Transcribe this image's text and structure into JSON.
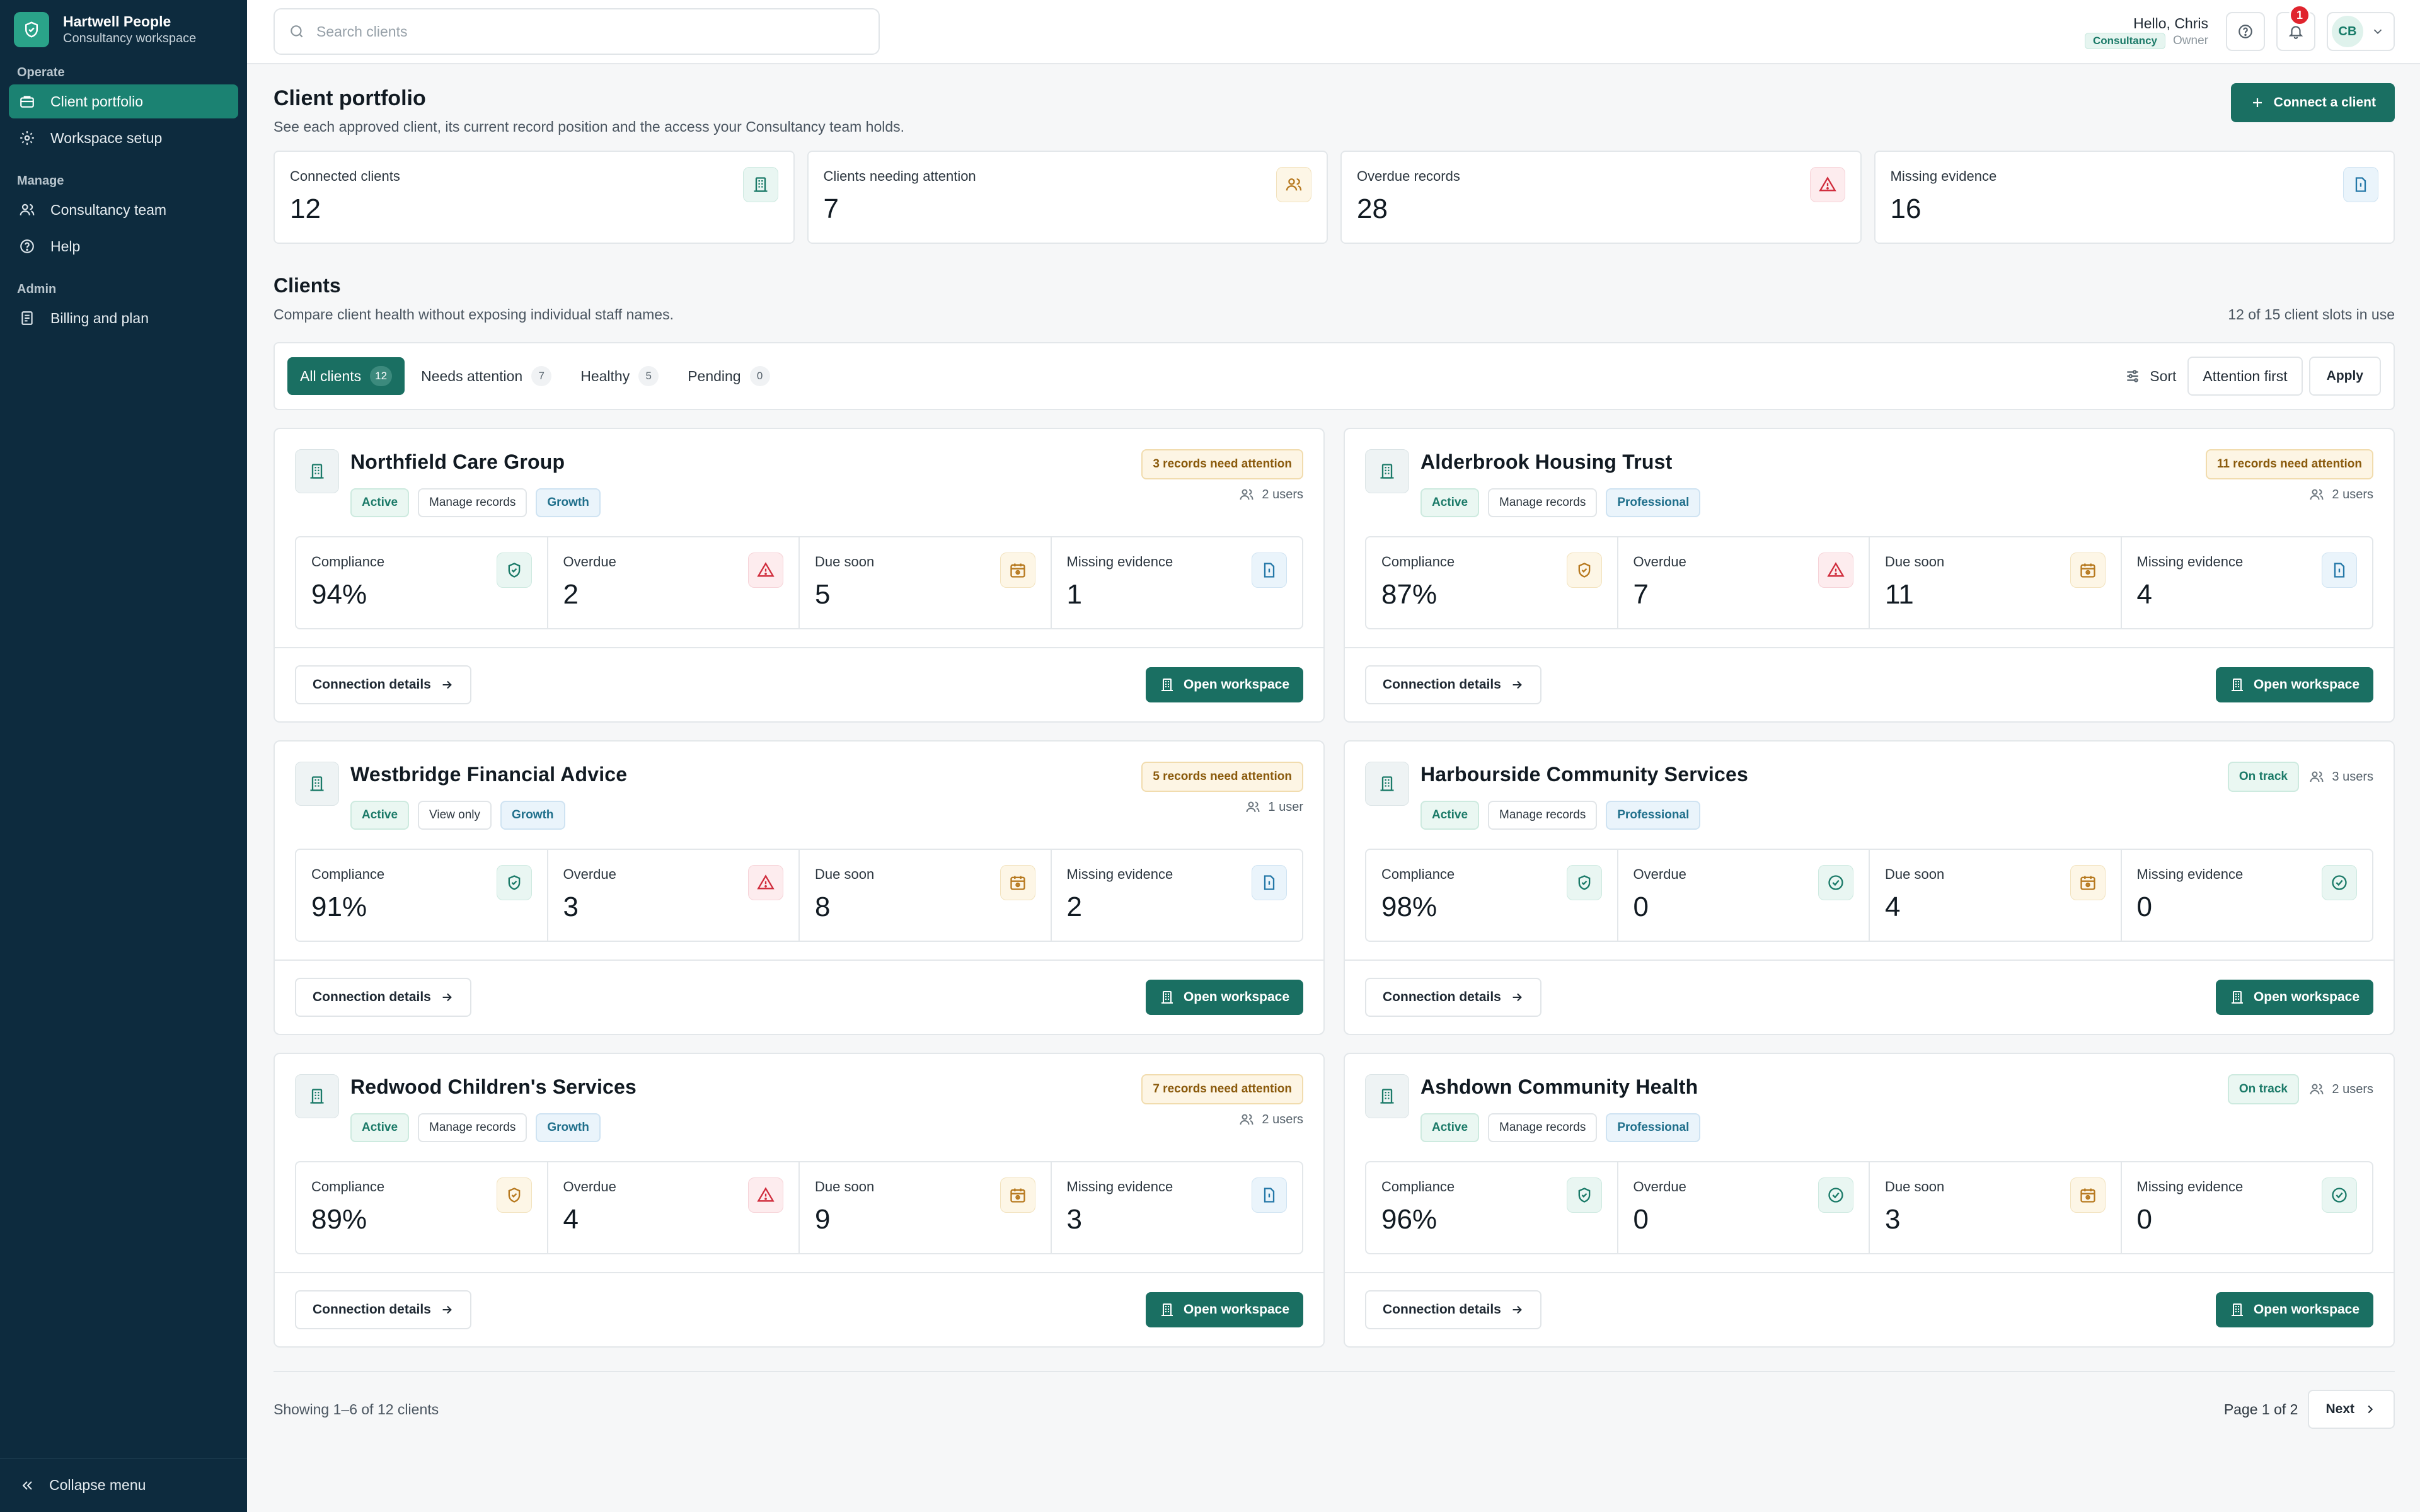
{
  "brand": {
    "name": "Hartwell People",
    "sub": "Consultancy workspace"
  },
  "sidebar": {
    "sections": [
      {
        "title": "Operate",
        "items": [
          {
            "label": "Client portfolio",
            "icon": "briefcase-icon",
            "active": true
          },
          {
            "label": "Workspace setup",
            "icon": "gear-icon"
          }
        ]
      },
      {
        "title": "Manage",
        "items": [
          {
            "label": "Consultancy team",
            "icon": "users-icon"
          },
          {
            "label": "Help",
            "icon": "help-icon"
          }
        ]
      },
      {
        "title": "Admin",
        "items": [
          {
            "label": "Billing and plan",
            "icon": "receipt-icon"
          }
        ]
      }
    ],
    "collapse_label": "Collapse menu"
  },
  "topbar": {
    "search_placeholder": "Search clients",
    "greeting": "Hello, Chris",
    "org_badge": "Consultancy",
    "role": "Owner",
    "notification_count": "1",
    "avatar_initials": "CB"
  },
  "page": {
    "title": "Client portfolio",
    "subtitle": "See each approved client, its current record position and the access your Consultancy team holds.",
    "connect_button": "Connect a client"
  },
  "stats": [
    {
      "label": "Connected clients",
      "value": "12",
      "icon": "building-icon",
      "tone": "green"
    },
    {
      "label": "Clients needing attention",
      "value": "7",
      "icon": "users-icon",
      "tone": "amber"
    },
    {
      "label": "Overdue records",
      "value": "28",
      "icon": "alert-triangle-icon",
      "tone": "red"
    },
    {
      "label": "Missing evidence",
      "value": "16",
      "icon": "file-icon",
      "tone": "blue"
    }
  ],
  "clients_section": {
    "title": "Clients",
    "subtitle": "Compare client health without exposing individual staff names.",
    "slots": "12 of 15 client slots in use"
  },
  "filters": {
    "tabs": [
      {
        "label": "All clients",
        "count": "12",
        "active": true
      },
      {
        "label": "Needs attention",
        "count": "7"
      },
      {
        "label": "Healthy",
        "count": "5"
      },
      {
        "label": "Pending",
        "count": "0"
      }
    ],
    "sort_label": "Sort",
    "sort_value": "Attention first",
    "apply_label": "Apply"
  },
  "card_labels": {
    "compliance": "Compliance",
    "overdue": "Overdue",
    "due_soon": "Due soon",
    "missing_evidence": "Missing evidence",
    "connection_details": "Connection details",
    "open_workspace": "Open workspace"
  },
  "clients": [
    {
      "name": "Northfield Care Group",
      "status": "Active",
      "access": "Manage records",
      "plan": "Growth",
      "attention": "3 records need attention",
      "users": "2 users",
      "compliance": "94%",
      "compliance_tone": "green",
      "overdue": "2",
      "overdue_tone": "red",
      "due_soon": "5",
      "missing": "1",
      "missing_tone": "blue"
    },
    {
      "name": "Alderbrook Housing Trust",
      "status": "Active",
      "access": "Manage records",
      "plan": "Professional",
      "attention": "11 records need attention",
      "users": "2 users",
      "compliance": "87%",
      "compliance_tone": "amber",
      "overdue": "7",
      "overdue_tone": "red",
      "due_soon": "11",
      "missing": "4",
      "missing_tone": "blue"
    },
    {
      "name": "Westbridge Financial Advice",
      "status": "Active",
      "access": "View only",
      "plan": "Growth",
      "attention": "5 records need attention",
      "users": "1 user",
      "compliance": "91%",
      "compliance_tone": "green",
      "overdue": "3",
      "overdue_tone": "red",
      "due_soon": "8",
      "missing": "2",
      "missing_tone": "blue"
    },
    {
      "name": "Harbourside Community Services",
      "status": "Active",
      "access": "Manage records",
      "plan": "Professional",
      "ontrack": "On track",
      "users": "3 users",
      "compliance": "98%",
      "compliance_tone": "green",
      "overdue": "0",
      "overdue_tone": "green",
      "due_soon": "4",
      "missing": "0",
      "missing_tone": "green"
    },
    {
      "name": "Redwood Children's Services",
      "status": "Active",
      "access": "Manage records",
      "plan": "Growth",
      "attention": "7 records need attention",
      "users": "2 users",
      "compliance": "89%",
      "compliance_tone": "amber",
      "overdue": "4",
      "overdue_tone": "red",
      "due_soon": "9",
      "missing": "3",
      "missing_tone": "blue"
    },
    {
      "name": "Ashdown Community Health",
      "status": "Active",
      "access": "Manage records",
      "plan": "Professional",
      "ontrack": "On track",
      "users": "2 users",
      "compliance": "96%",
      "compliance_tone": "green",
      "overdue": "0",
      "overdue_tone": "green",
      "due_soon": "3",
      "missing": "0",
      "missing_tone": "green"
    }
  ],
  "pagination": {
    "showing": "Showing 1–6 of 12 clients",
    "page": "Page 1 of 2",
    "next": "Next"
  },
  "colors": {
    "sidebar": "#0d2b3e",
    "primary": "#1a6f62",
    "accent": "#2aa389",
    "danger": "#e0242e"
  }
}
